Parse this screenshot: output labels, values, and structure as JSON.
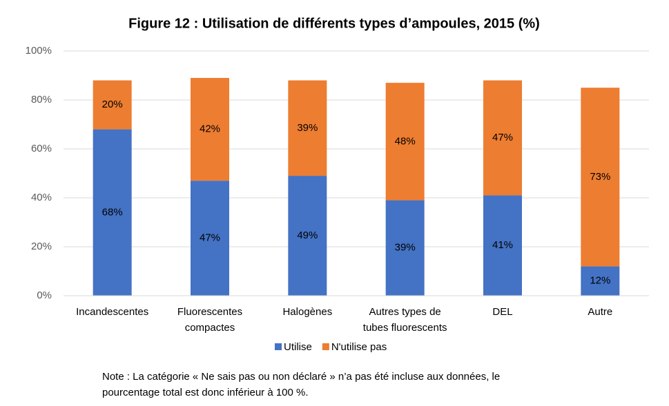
{
  "chart_data": {
    "type": "stacked_bar",
    "title": "Figure 12 : Utilisation de différents types d’ampoules,  2015 (%)",
    "categories": [
      "Incandescentes",
      "Fluorescentes\ncompactes",
      "Halogènes",
      "Autres types de\ntubes fluorescents",
      "DEL",
      "Autre"
    ],
    "series": [
      {
        "name": "Utilise",
        "color": "#4472c4",
        "values": [
          68,
          47,
          49,
          39,
          41,
          12
        ],
        "value_labels": [
          "68%",
          "47%",
          "49%",
          "39%",
          "41%",
          "12%"
        ]
      },
      {
        "name": "N'utilise pas",
        "color": "#ed7d31",
        "values": [
          20,
          42,
          39,
          48,
          47,
          73
        ],
        "value_labels": [
          "20%",
          "42%",
          "39%",
          "48%",
          "47%",
          "73%"
        ]
      }
    ],
    "ylim": [
      0,
      100
    ],
    "yticks": [
      {
        "value": 0,
        "label": "0%"
      },
      {
        "value": 20,
        "label": "20%"
      },
      {
        "value": 40,
        "label": "40%"
      },
      {
        "value": 60,
        "label": "60%"
      },
      {
        "value": 80,
        "label": "80%"
      },
      {
        "value": 100,
        "label": "100%"
      }
    ],
    "grid": true,
    "legend": "bottom",
    "note": [
      "Note : La catégorie « Ne sais pas ou non déclaré » n’a pas été incluse aux données, le",
      "pourcentage total est donc inférieur à 100 %."
    ]
  }
}
